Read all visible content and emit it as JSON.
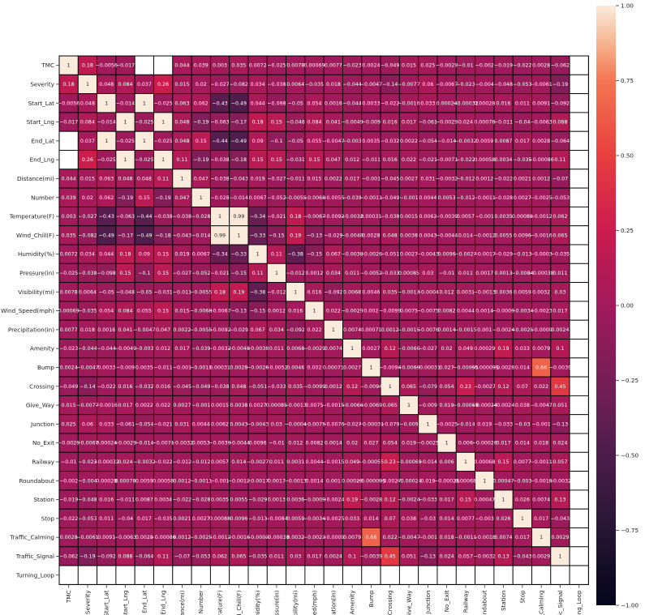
{
  "chart_data": {
    "type": "heatmap",
    "title": "",
    "variables": [
      "TMC",
      "Severity",
      "Start_Lat",
      "Start_Lng",
      "End_Lat",
      "End_Lng",
      "Distance(mi)",
      "Number",
      "Temperature(F)",
      "Wind_Chill(F)",
      "Humidity(%)",
      "Pressure(in)",
      "Visibility(mi)",
      "Wind_Speed(mph)",
      "Precipitation(in)",
      "Amenity",
      "Bump",
      "Crossing",
      "Give_Way",
      "Junction",
      "No_Exit",
      "Railway",
      "Roundabout",
      "Station",
      "Stop",
      "Traffic_Calming",
      "Traffic_Signal",
      "Turning_Loop"
    ],
    "colorbar": {
      "range": [
        -1.0,
        1.0
      ],
      "ticks": [
        1.0,
        0.75,
        0.5,
        0.25,
        0.0,
        -0.25,
        -0.5,
        -0.75,
        -1.0
      ],
      "tick_labels": [
        "1.00",
        "0.75",
        "0.50",
        "0.25",
        "0.00",
        "−0.25",
        "−0.50",
        "−0.75",
        "−1.00"
      ]
    },
    "annotations": true,
    "matrix": [
      [
        1,
        0.18,
        -0.0056,
        -0.017,
        null,
        null,
        0.044,
        0.039,
        0.003,
        0.035,
        0.0072,
        -0.025,
        0.0078,
        0.00069,
        0.0077,
        -0.023,
        0.0024,
        -0.049,
        0.015,
        0.025,
        -0.0029,
        -0.01,
        -0.002,
        -0.019,
        -0.022,
        0.0028,
        -0.062,
        null
      ],
      [
        0.18,
        1,
        0.048,
        0.084,
        0.037,
        0.26,
        0.015,
        0.02,
        -0.027,
        -0.082,
        0.034,
        -0.038,
        0.0064,
        -0.035,
        0.018,
        -0.044,
        -0.0047,
        -0.14,
        -0.0077,
        0.06,
        -0.0067,
        -0.023,
        -0.004,
        -0.048,
        -0.053,
        -0.0061,
        -0.19,
        null
      ],
      [
        -0.0056,
        0.048,
        1,
        -0.014,
        1,
        -0.025,
        0.063,
        0.062,
        -0.43,
        -0.49,
        0.044,
        -0.098,
        -0.05,
        0.054,
        0.0016,
        -0.044,
        0.0033,
        -0.022,
        -0.0016,
        0.033,
        0.00024,
        -0.00032,
        0.00028,
        0.016,
        0.011,
        0.0091,
        -0.092,
        null
      ],
      [
        -0.017,
        0.084,
        -0.014,
        1,
        -0.025,
        1,
        0.048,
        -0.19,
        -0.063,
        -0.17,
        0.18,
        0.15,
        -0.048,
        0.084,
        0.041,
        -0.0049,
        -0.009,
        0.016,
        0.017,
        -0.061,
        -0.0029,
        0.024,
        0.00078,
        -0.011,
        -0.04,
        -0.0063,
        0.088,
        null
      ],
      [
        null,
        0.037,
        1,
        -0.025,
        1,
        -0.025,
        0.048,
        0.15,
        -0.44,
        -0.49,
        0.09,
        -0.1,
        -0.05,
        0.055,
        -0.0047,
        -0.003,
        0.0035,
        -0.032,
        0.0022,
        -0.054,
        -0.014,
        -0.0032,
        0.0059,
        0.0087,
        0.017,
        0.0028,
        -0.064,
        null
      ],
      [
        null,
        0.26,
        -0.025,
        1,
        -0.025,
        1,
        0.11,
        -0.19,
        -0.038,
        -0.18,
        0.15,
        0.15,
        -0.031,
        0.15,
        0.047,
        0.012,
        -0.011,
        0.016,
        0.022,
        -0.021,
        -0.0071,
        -0.022,
        0.00058,
        0.0034,
        -0.035,
        -0.00086,
        0.11,
        null
      ],
      [
        0.044,
        0.015,
        0.063,
        0.048,
        0.048,
        0.11,
        1,
        0.047,
        -0.038,
        -0.043,
        0.019,
        -0.027,
        -0.011,
        0.015,
        0.0022,
        0.017,
        -0.001,
        -0.045,
        0.0027,
        0.031,
        -0.0032,
        -0.012,
        0.0012,
        -0.022,
        0.0021,
        0.0012,
        -0.07,
        null
      ],
      [
        0.039,
        0.02,
        0.062,
        -0.19,
        0.15,
        -0.19,
        0.047,
        1,
        -0.028,
        -0.014,
        0.0067,
        -0.052,
        -0.0055,
        -0.0068,
        -0.0055,
        -0.039,
        -0.0011,
        -0.049,
        -0.001,
        0.0044,
        0.0053,
        -0.012,
        -0.0011,
        -0.028,
        0.0027,
        -0.0025,
        -0.053,
        null
      ],
      [
        0.003,
        -0.027,
        -0.43,
        -0.063,
        -0.44,
        -0.038,
        -0.038,
        -0.028,
        1,
        0.99,
        -0.34,
        -0.021,
        0.18,
        -0.0067,
        -0.0092,
        -0.0032,
        0.00031,
        -0.038,
        0.0015,
        0.0062,
        -0.0039,
        0.0057,
        -0.001,
        0.0035,
        0.00088,
        -0.0012,
        0.062,
        null
      ],
      [
        0.035,
        -0.082,
        -0.49,
        -0.17,
        -0.49,
        -0.18,
        -0.043,
        -0.014,
        0.99,
        1,
        -0.33,
        -0.15,
        0.19,
        -0.13,
        -0.029,
        -0.0048,
        0.0028,
        0.048,
        0.0038,
        0.0043,
        -0.0044,
        0.014,
        -0.0012,
        0.0055,
        0.0096,
        -0.0016,
        0.065,
        null
      ],
      [
        0.0072,
        0.034,
        0.044,
        0.18,
        0.09,
        0.15,
        0.019,
        0.0067,
        -0.34,
        -0.33,
        1,
        0.11,
        -0.38,
        -0.15,
        0.067,
        -0.0038,
        -0.0026,
        -0.051,
        0.0027,
        -0.0043,
        0.0096,
        -0.0027,
        -0.0017,
        -0.029,
        -0.013,
        -0.0003,
        -0.035,
        null
      ],
      [
        -0.025,
        -0.038,
        -0.098,
        0.15,
        -0.1,
        0.15,
        -0.027,
        -0.052,
        -0.021,
        -0.15,
        0.11,
        1,
        -0.012,
        0.0012,
        0.034,
        0.011,
        -0.0052,
        -0.033,
        0.00085,
        0.03,
        -0.01,
        0.011,
        0.0017,
        0.0013,
        -0.0084,
        -0.00038,
        0.011,
        null
      ],
      [
        0.0078,
        0.0064,
        -0.05,
        -0.048,
        -0.05,
        -0.031,
        -0.011,
        -0.0055,
        0.18,
        0.19,
        -0.38,
        -0.012,
        1,
        0.016,
        -0.092,
        0.0068,
        0.0046,
        0.035,
        -0.0013,
        -0.0004,
        0.012,
        0.0031,
        -0.0013,
        0.0036,
        0.0059,
        0.0032,
        0.03,
        null
      ],
      [
        0.00069,
        -0.035,
        0.054,
        0.084,
        0.055,
        0.15,
        0.015,
        -0.0068,
        -0.0067,
        -0.13,
        -0.15,
        0.0012,
        0.016,
        1,
        0.022,
        -0.0029,
        0.002,
        -0.0099,
        0.0075,
        -0.0075,
        0.0082,
        0.0044,
        0.0014,
        -0.0009,
        -0.0034,
        -0.0023,
        0.017,
        null
      ],
      [
        0.0077,
        0.018,
        0.0016,
        0.041,
        -0.0047,
        0.047,
        0.0022,
        -0.0055,
        -0.0092,
        -0.029,
        0.067,
        0.034,
        -0.092,
        0.022,
        1,
        0.0074,
        0.00071,
        0.0012,
        -0.0015,
        -0.0076,
        0.0014,
        -0.0015,
        0.001,
        -0.0024,
        -0.0025,
        -0.0009,
        0.0024,
        null
      ],
      [
        -0.023,
        -0.044,
        -0.044,
        -0.0049,
        -0.003,
        0.012,
        0.017,
        -0.039,
        -0.0032,
        -0.0048,
        -0.0038,
        0.011,
        0.0068,
        -0.0029,
        0.0074,
        1,
        0.0027,
        0.12,
        -0.0066,
        -0.027,
        0.02,
        0.049,
        0.00029,
        0.19,
        0.033,
        0.0079,
        0.1,
        null
      ],
      [
        0.0024,
        -0.0047,
        0.0033,
        -0.009,
        0.0035,
        -0.011,
        -0.001,
        -0.0011,
        0.00031,
        0.0028,
        -0.0026,
        -0.0052,
        0.0046,
        0.002,
        0.00071,
        0.0027,
        1,
        -0.0094,
        -0.0069,
        -0.00031,
        0.027,
        -0.00055,
        -9.5e-05,
        -0.0028,
        0.014,
        0.66,
        -0.0039,
        null
      ],
      [
        -0.049,
        -0.14,
        -0.022,
        0.016,
        -0.032,
        0.016,
        -0.045,
        -0.049,
        -0.038,
        0.048,
        -0.051,
        -0.033,
        0.035,
        -0.0099,
        0.0012,
        0.12,
        -0.0094,
        1,
        0.065,
        -0.079,
        0.054,
        0.23,
        -0.0027,
        0.12,
        0.07,
        0.022,
        0.45,
        null
      ],
      [
        0.015,
        -0.0077,
        -0.0016,
        0.017,
        0.0022,
        0.022,
        0.0027,
        -0.001,
        0.0015,
        0.0038,
        0.0027,
        0.00085,
        -0.0013,
        0.0075,
        -0.0015,
        -0.0066,
        -0.0069,
        0.065,
        1,
        -0.009,
        0.019,
        -0.00069,
        -0.00024,
        -0.0024,
        0.038,
        -0.0047,
        0.051,
        null
      ],
      [
        0.025,
        0.06,
        0.033,
        -0.061,
        -0.054,
        -0.021,
        0.031,
        0.0044,
        0.0062,
        0.0043,
        -0.0043,
        0.03,
        -0.0004,
        -0.0075,
        -0.0076,
        -0.027,
        -0.00031,
        -0.079,
        -0.009,
        1,
        -0.0025,
        -0.014,
        0.019,
        -0.033,
        -0.03,
        -0.001,
        -0.13,
        null
      ],
      [
        -0.0029,
        -0.0067,
        0.00024,
        -0.0029,
        -0.014,
        -0.0071,
        -0.0032,
        0.0053,
        -0.0039,
        -0.0044,
        0.0096,
        -0.01,
        0.012,
        0.0082,
        0.0014,
        0.02,
        0.027,
        0.054,
        0.019,
        -0.0025,
        1,
        0.006,
        -0.00026,
        0.017,
        0.014,
        0.018,
        0.024,
        null
      ],
      [
        -0.01,
        -0.023,
        -0.00032,
        0.024,
        -0.0032,
        -0.022,
        -0.012,
        -0.012,
        0.0057,
        0.014,
        -0.0027,
        0.011,
        0.0031,
        0.0044,
        -0.0015,
        0.049,
        -0.00055,
        0.23,
        -0.00069,
        -0.014,
        0.006,
        1,
        0.00068,
        0.15,
        0.0077,
        -0.0011,
        0.057,
        null
      ],
      [
        -0.002,
        -0.004,
        0.00028,
        0.00078,
        0.0059,
        0.00058,
        0.0012,
        -0.0011,
        -0.001,
        -0.0012,
        -0.0017,
        0.0017,
        -0.0013,
        0.0014,
        0.001,
        0.00029,
        -9.5e-05,
        -0.0027,
        -0.00024,
        0.019,
        -0.00026,
        0.00068,
        1,
        0.00047,
        -0.003,
        -0.0018,
        -0.0032,
        null
      ],
      [
        -0.019,
        -0.048,
        0.016,
        -0.011,
        0.0087,
        0.0034,
        -0.022,
        -0.028,
        0.0035,
        0.0055,
        -0.029,
        0.0013,
        0.0036,
        -0.0009,
        -0.0024,
        0.19,
        -0.0028,
        0.12,
        -0.0024,
        -0.033,
        0.017,
        0.15,
        0.00047,
        1,
        0.026,
        0.0074,
        0.13,
        null
      ],
      [
        -0.022,
        -0.053,
        0.011,
        -0.04,
        0.017,
        -0.035,
        0.0021,
        0.0027,
        0.00088,
        0.0096,
        -0.013,
        -0.0084,
        0.0059,
        -0.0034,
        -0.0025,
        0.033,
        0.014,
        0.07,
        0.038,
        -0.03,
        0.014,
        0.0077,
        -0.003,
        0.026,
        1,
        0.017,
        -0.043,
        null
      ],
      [
        0.0028,
        -0.0061,
        0.0091,
        -0.0063,
        0.0028,
        -0.00086,
        0.0012,
        -0.0025,
        -0.0012,
        -0.0016,
        -0.0003,
        -0.00038,
        0.0032,
        -0.0023,
        -0.0009,
        0.0079,
        0.66,
        0.022,
        -0.0047,
        -0.001,
        0.018,
        -0.0011,
        -0.0018,
        0.0074,
        0.017,
        1,
        0.0029,
        null
      ],
      [
        -0.062,
        -0.19,
        -0.092,
        0.088,
        -0.064,
        0.11,
        -0.07,
        -0.053,
        0.062,
        0.065,
        -0.035,
        0.011,
        0.03,
        0.017,
        0.0024,
        0.1,
        -0.0039,
        0.45,
        0.051,
        -0.13,
        0.024,
        0.057,
        -0.0032,
        0.13,
        -0.043,
        0.0029,
        1,
        null
      ],
      [
        null,
        null,
        null,
        null,
        null,
        null,
        null,
        null,
        null,
        null,
        null,
        null,
        null,
        null,
        null,
        null,
        null,
        null,
        null,
        null,
        null,
        null,
        null,
        null,
        null,
        null,
        null,
        null
      ]
    ]
  }
}
